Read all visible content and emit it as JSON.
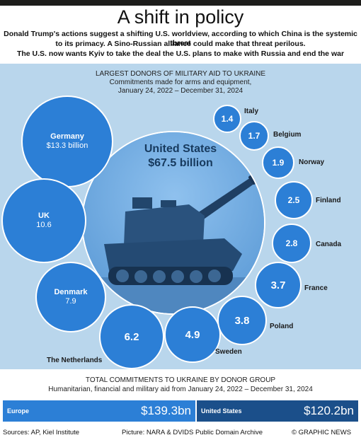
{
  "header": {
    "title": "A shift in policy",
    "lines": [
      "Donald Trump's actions suggest a shifting U.S. worldview, according to which China is the systemic threat",
      "to its primacy. A Sino-Russian alliance could make that threat perilous.",
      "The U.S. now wants Kyiv to take the deal the U.S. plans to make with Russia and end the war"
    ]
  },
  "donors_panel": {
    "title": "LARGEST DONORS OF MILITARY AID TO UKRAINE",
    "subtitle1": "Commitments made for arms and equipment,",
    "subtitle2": "January 24, 2022 – December 31, 2024",
    "center": {
      "name": "United States",
      "value": "$67.5 billion"
    },
    "donors": [
      {
        "name": "Germany",
        "value": "$13.3 billion",
        "color": "#2c7fd6"
      },
      {
        "name": "UK",
        "value": "10.6",
        "color": "#2c7fd6"
      },
      {
        "name": "Denmark",
        "value": "7.9",
        "color": "#2c7fd6"
      },
      {
        "name": "The Netherlands",
        "value": "6.2",
        "color": "#2c7fd6"
      },
      {
        "name": "Sweden",
        "value": "4.9",
        "color": "#2c7fd6"
      },
      {
        "name": "Poland",
        "value": "3.8",
        "color": "#2c7fd6"
      },
      {
        "name": "France",
        "value": "3.7",
        "color": "#2c7fd6"
      },
      {
        "name": "Canada",
        "value": "2.8",
        "color": "#2c7fd6"
      },
      {
        "name": "Finland",
        "value": "2.5",
        "color": "#2c7fd6"
      },
      {
        "name": "Norway",
        "value": "1.9",
        "color": "#2c7fd6"
      },
      {
        "name": "Belgium",
        "value": "1.7",
        "color": "#2c7fd6"
      },
      {
        "name": "Italy",
        "value": "1.4",
        "color": "#2c7fd6"
      }
    ]
  },
  "totals": {
    "title": "TOTAL COMMITMENTS TO UKRAINE BY DONOR GROUP",
    "subtitle": "Humanitarian, financial and military aid from January 24, 2022 – December 31, 2024",
    "europe": {
      "label": "Europe",
      "value": "$139.3bn",
      "color": "#2c7fd6"
    },
    "us": {
      "label": "United States",
      "value": "$120.2bn",
      "color": "#1b4f8a"
    }
  },
  "footer": {
    "sources": "Sources: AP, Kiel Institute",
    "picture": "Picture: NARA & DVIDS Public Domain Archive",
    "credit": "© GRAPHIC NEWS"
  }
}
